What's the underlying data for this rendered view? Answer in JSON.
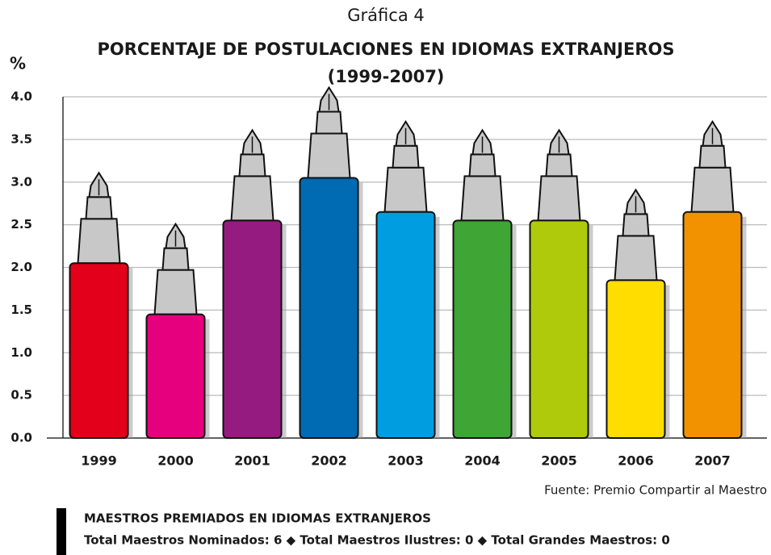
{
  "chart_data": {
    "type": "bar",
    "label": "Gráfica 4",
    "title": [
      "PORCENTAJE DE POSTULACIONES EN IDIOMAS EXTRANJEROS",
      "(1999-2007)"
    ],
    "ylabel": "%",
    "categories": [
      "1999",
      "2000",
      "2001",
      "2002",
      "2003",
      "2004",
      "2005",
      "2006",
      "2007"
    ],
    "values": [
      2.05,
      1.45,
      2.55,
      3.05,
      2.65,
      2.55,
      2.55,
      1.85,
      2.65
    ],
    "colors": [
      "#e2001a",
      "#e6007e",
      "#951b81",
      "#006ab3",
      "#009ee0",
      "#3fa535",
      "#afca0b",
      "#ffdd00",
      "#f39200"
    ],
    "ylim": [
      0,
      4
    ],
    "yticks": [
      {
        "value": 0,
        "label": "0.0"
      },
      {
        "value": 0.5,
        "label": "0.5"
      },
      {
        "value": 1,
        "label": "1.0"
      },
      {
        "value": 1.5,
        "label": "1.5"
      },
      {
        "value": 2,
        "label": "2.0"
      },
      {
        "value": 2.5,
        "label": "2.5"
      },
      {
        "value": 3,
        "label": "3.0"
      },
      {
        "value": 3.5,
        "label": "3.5"
      },
      {
        "value": 4,
        "label": "4.0"
      }
    ],
    "grid": true,
    "source": "Fuente: Premio Compartir al Maestro",
    "footer": {
      "heading": "MAESTROS PREMIADOS EN IDIOMAS EXTRANJEROS",
      "text": "Total Maestros Nominados: 6 ◆ Total Maestros Ilustres: 0 ◆ Total Grandes Maestros: 0"
    }
  }
}
